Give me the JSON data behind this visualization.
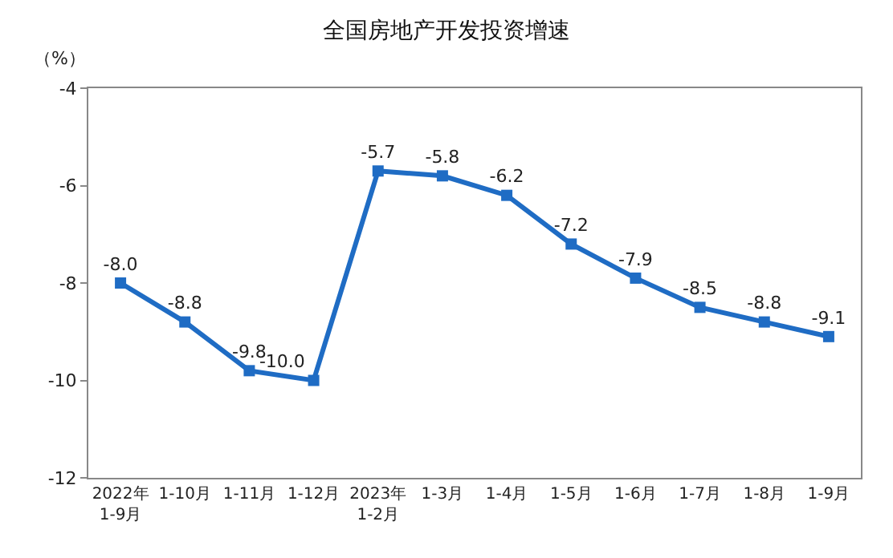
{
  "chart_data": {
    "type": "line",
    "title": "全国房地产开发投资增速",
    "ylabel": "（%）",
    "categories": [
      "2022年\n1-9月",
      "1-10月",
      "1-11月",
      "1-12月",
      "2023年\n1-2月",
      "1-3月",
      "1-4月",
      "1-5月",
      "1-6月",
      "1-7月",
      "1-8月",
      "1-9月"
    ],
    "series": [
      {
        "color": "#1f6cc4",
        "values": [
          -8.0,
          -8.8,
          -9.8,
          -10.0,
          -5.7,
          -5.8,
          -6.2,
          -7.2,
          -7.9,
          -8.5,
          -8.8,
          -9.1
        ],
        "value_labels": [
          "-8.0",
          "-8.8",
          "-9.8",
          "-10.0",
          "-5.7",
          "-5.8",
          "-6.2",
          "-7.2",
          "-7.9",
          "-8.5",
          "-8.8",
          "-9.1"
        ]
      }
    ],
    "ylim": [
      -12,
      -4
    ],
    "yticks": [
      -12,
      -10,
      -8,
      -6,
      -4
    ],
    "marker": "square",
    "line_style": "solid"
  }
}
